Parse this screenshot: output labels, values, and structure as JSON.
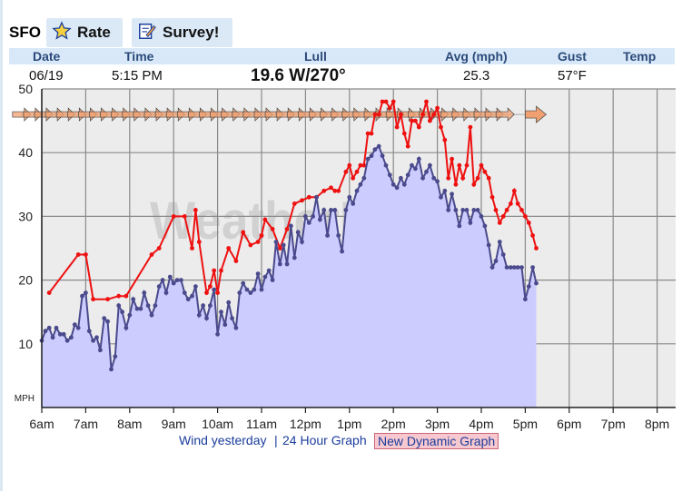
{
  "station": "SFO",
  "tabs": [
    {
      "label": "Rate",
      "icon": "star-icon"
    },
    {
      "label": "Survey!",
      "icon": "survey-icon"
    }
  ],
  "header": {
    "date": "Date",
    "time": "Time",
    "lull": "Lull",
    "avg": "Avg (mph)",
    "gust": "Gust",
    "temp": "Temp"
  },
  "current": {
    "date": "06/19",
    "time": "5:15 PM",
    "lull": "19.6 W/270°",
    "avg": "25.3",
    "gust": "57°F",
    "temp": ""
  },
  "links": {
    "yesterday": "Wind yesterday",
    "sep": "|",
    "hour24": "24 Hour Graph",
    "dynamic": "New Dynamic Graph"
  },
  "watermark": "WeatherFlow",
  "colors": {
    "avg_line": "#4a4a8c",
    "avg_fill": "#ccccff",
    "gust_line": "#ee1111",
    "arrow": "#f0a070",
    "tab_bg": "#dbe9f7",
    "header_bg": "#d8e8f8"
  },
  "chart_data": {
    "type": "line",
    "ylabel": "MPH",
    "ylim": [
      0,
      50
    ],
    "yticks": [
      "10",
      "20",
      "30",
      "40",
      "50"
    ],
    "xlim": [
      6,
      20
    ],
    "xticks": [
      "6am",
      "7am",
      "8am",
      "9am",
      "10am",
      "11am",
      "12pm",
      "1pm",
      "2pm",
      "3pm",
      "4pm",
      "5pm",
      "6pm",
      "7pm",
      "8pm"
    ],
    "grid": true,
    "series": [
      {
        "name": "Avg",
        "x": [
          6.0,
          6.08,
          6.17,
          6.25,
          6.33,
          6.42,
          6.5,
          6.58,
          6.67,
          6.75,
          6.83,
          6.92,
          7.0,
          7.08,
          7.17,
          7.25,
          7.33,
          7.42,
          7.5,
          7.58,
          7.67,
          7.75,
          7.83,
          7.92,
          8.0,
          8.08,
          8.17,
          8.25,
          8.33,
          8.42,
          8.5,
          8.58,
          8.67,
          8.75,
          8.83,
          8.92,
          9.0,
          9.08,
          9.17,
          9.25,
          9.33,
          9.42,
          9.5,
          9.58,
          9.67,
          9.75,
          9.83,
          9.92,
          10.0,
          10.08,
          10.17,
          10.25,
          10.33,
          10.42,
          10.5,
          10.58,
          10.67,
          10.75,
          10.83,
          10.92,
          11.0,
          11.08,
          11.17,
          11.25,
          11.33,
          11.42,
          11.5,
          11.58,
          11.67,
          11.75,
          11.83,
          11.92,
          12.0,
          12.08,
          12.17,
          12.25,
          12.33,
          12.42,
          12.5,
          12.58,
          12.67,
          12.75,
          12.83,
          12.92,
          13.0,
          13.08,
          13.17,
          13.25,
          13.33,
          13.42,
          13.5,
          13.58,
          13.67,
          13.75,
          13.83,
          13.92,
          14.0,
          14.08,
          14.17,
          14.25,
          14.33,
          14.42,
          14.5,
          14.58,
          14.67,
          14.75,
          14.83,
          14.92,
          15.0,
          15.08,
          15.17,
          15.25,
          15.33,
          15.42,
          15.5,
          15.58,
          15.67,
          15.75,
          15.83,
          15.92,
          16.0,
          16.08,
          16.17,
          16.25,
          16.33,
          16.42,
          16.5,
          16.58,
          16.67,
          16.75,
          16.83,
          16.92,
          17.0,
          17.08,
          17.17,
          17.25
        ],
        "values": [
          10.5,
          12,
          12.5,
          11,
          12.5,
          11.5,
          11.5,
          10.5,
          11,
          13,
          12.5,
          17.5,
          18,
          12,
          10.5,
          11,
          9,
          14,
          13.5,
          6,
          8,
          16,
          15,
          12.5,
          14.5,
          17,
          15.5,
          15.5,
          18,
          16,
          14.5,
          16,
          19,
          20,
          18,
          20.5,
          19.5,
          20,
          20,
          18,
          17,
          17.5,
          19,
          14.5,
          16,
          14,
          16,
          18.5,
          11.5,
          15,
          13,
          16.5,
          14,
          12.5,
          18,
          19.5,
          18.5,
          18,
          18.5,
          21,
          18.5,
          20.5,
          21.5,
          20,
          26,
          22.5,
          25.5,
          22.5,
          28.5,
          23.5,
          27.5,
          26,
          30,
          29,
          30,
          33,
          29.5,
          31,
          27,
          31,
          31,
          27,
          24.5,
          31,
          33,
          32,
          34,
          35,
          36,
          39,
          39.5,
          40.5,
          41,
          39.5,
          38,
          36.5,
          35,
          34.5,
          36,
          35,
          36.5,
          38,
          37.5,
          39,
          36,
          37,
          38,
          36,
          35.5,
          33,
          34,
          31,
          33.5,
          31,
          28.5,
          31,
          31,
          29,
          31,
          31,
          30,
          28.5,
          25.5,
          22,
          23,
          26,
          24,
          22,
          22,
          22,
          22,
          22,
          17,
          19,
          22,
          19.5
        ]
      },
      {
        "name": "Gust",
        "x": [
          6.17,
          6.83,
          7.0,
          7.17,
          7.5,
          7.75,
          7.92,
          8.5,
          8.67,
          9.0,
          9.25,
          9.42,
          9.5,
          9.58,
          9.75,
          9.83,
          9.92,
          10.0,
          10.08,
          10.25,
          10.42,
          10.58,
          10.75,
          10.92,
          11.0,
          11.08,
          11.25,
          11.42,
          11.58,
          11.75,
          11.92,
          12.08,
          12.25,
          12.42,
          12.58,
          12.67,
          12.75,
          12.92,
          13.0,
          13.08,
          13.17,
          13.25,
          13.33,
          13.42,
          13.5,
          13.58,
          13.67,
          13.75,
          13.83,
          13.92,
          14.0,
          14.08,
          14.17,
          14.25,
          14.33,
          14.42,
          14.5,
          14.58,
          14.67,
          14.75,
          14.83,
          14.92,
          15.0,
          15.08,
          15.17,
          15.25,
          15.33,
          15.42,
          15.5,
          15.58,
          15.67,
          15.75,
          15.83,
          15.92,
          16.0,
          16.08,
          16.17,
          16.25,
          16.33,
          16.42,
          16.5,
          16.58,
          16.67,
          16.75,
          16.83,
          16.92,
          17.0,
          17.08,
          17.17,
          17.25
        ],
        "values": [
          18,
          24,
          24,
          17,
          17,
          17.5,
          17.5,
          24,
          25,
          30,
          30,
          25,
          31,
          26,
          18,
          19,
          21.5,
          18,
          21.5,
          25,
          23,
          27.5,
          25.5,
          26,
          27,
          29.5,
          28,
          25,
          28,
          32,
          32.5,
          33,
          33,
          34,
          34.5,
          34,
          34,
          37,
          38,
          36,
          37,
          38,
          38,
          43,
          43,
          46,
          46,
          48,
          48,
          47,
          48,
          44,
          46,
          43,
          41,
          45,
          45,
          44,
          46,
          48,
          45,
          46,
          47,
          44,
          42,
          36,
          39,
          35,
          38,
          36,
          38,
          44,
          35,
          36,
          38,
          37,
          36,
          33,
          31,
          29,
          30,
          31,
          32,
          34,
          32,
          31,
          30,
          29,
          27,
          25
        ]
      }
    ]
  }
}
